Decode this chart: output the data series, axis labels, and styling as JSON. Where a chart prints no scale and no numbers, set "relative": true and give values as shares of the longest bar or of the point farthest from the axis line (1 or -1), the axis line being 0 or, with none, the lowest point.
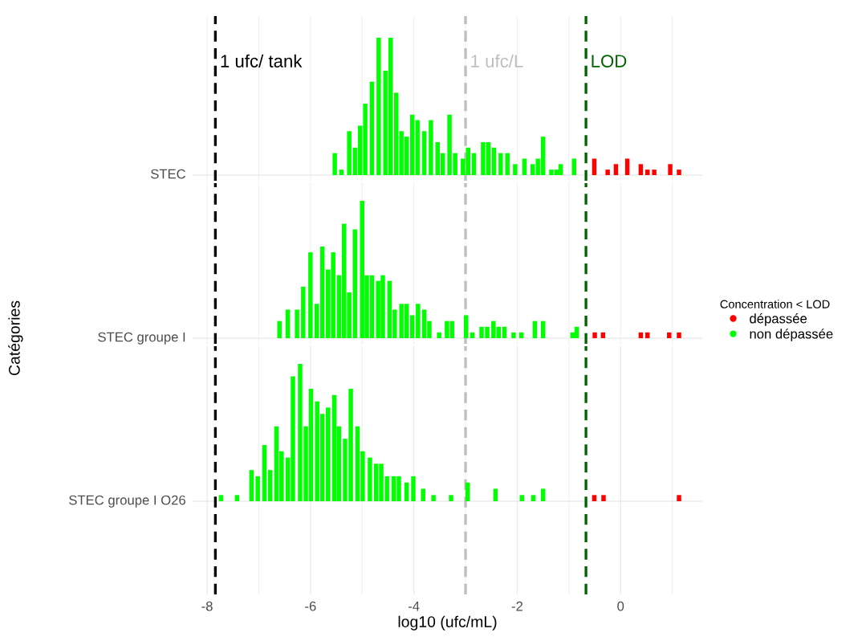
{
  "chart_data": [
    {
      "type": "bar",
      "relative": true,
      "title": "STEC",
      "grid": "x",
      "tick_labels": false,
      "xlim": [
        -8.28,
        1.58
      ],
      "xticks": [
        {
          "value": -8,
          "label": null
        },
        {
          "value": -7,
          "label": null
        },
        {
          "value": -6,
          "label": null
        },
        {
          "value": -5,
          "label": null
        },
        {
          "value": -4,
          "label": null
        },
        {
          "value": -3,
          "label": null
        },
        {
          "value": -2,
          "label": null
        },
        {
          "value": -1,
          "label": null
        },
        {
          "value": 0,
          "label": null
        },
        {
          "value": 1,
          "label": null
        }
      ],
      "ref_lines": [
        {
          "axis": "x",
          "value": -7.84,
          "label": "1 ufc/ tank",
          "color": "#000000",
          "line_style": "dashed"
        },
        {
          "axis": "x",
          "value": -3,
          "label": "1 ufc/L",
          "color": "#bebebe",
          "line_style": "dashed"
        },
        {
          "axis": "x",
          "value": -0.67,
          "label": "LOD",
          "color": "#006400",
          "line_style": "dashed"
        }
      ],
      "series": [
        {
          "color": "#ff0000",
          "x": [
            -0.51,
            -0.25,
            -0.09,
            0.13,
            0.39,
            0.52,
            0.65,
            0.96,
            1.13
          ],
          "values": [
            0.12,
            0.04,
            0.08,
            0.12,
            0.08,
            0.04,
            0.04,
            0.08,
            0.04
          ]
        },
        {
          "color": "#00ff00",
          "x": [
            -5.53,
            -5.4,
            -5.25,
            -5.14,
            -5.04,
            -4.94,
            -4.81,
            -4.68,
            -4.55,
            -4.45,
            -4.34,
            -4.24,
            -4.14,
            -4.03,
            -3.93,
            -3.8,
            -3.67,
            -3.54,
            -3.44,
            -3.31,
            -3.2,
            -3.05,
            -2.95,
            -2.84,
            -2.66,
            -2.56,
            -2.45,
            -2.32,
            -2.19,
            -2.04,
            -1.86,
            -1.7,
            -1.6,
            -1.5,
            -1.34,
            -1.24,
            -1.16,
            -0.9
          ],
          "values": [
            0.16,
            0.04,
            0.32,
            0.2,
            0.36,
            0.52,
            0.68,
            1,
            0.76,
            1,
            0.6,
            0.32,
            0.28,
            0.44,
            0.4,
            0.32,
            0.4,
            0.24,
            0.16,
            0.44,
            0.16,
            0.12,
            0.2,
            0.16,
            0.24,
            0.24,
            0.2,
            0.16,
            0.16,
            0.08,
            0.12,
            0.08,
            0.12,
            0.28,
            0.04,
            0.04,
            0.08,
            0.12
          ]
        }
      ]
    },
    {
      "type": "bar",
      "relative": true,
      "title": "STEC groupe I",
      "ylabel": "Catégories",
      "legend": "right",
      "legend_title": "Concentration < LOD",
      "grid": "x",
      "tick_labels": false,
      "xlim": [
        -8.28,
        1.58
      ],
      "xticks": [
        {
          "value": -8,
          "label": null
        },
        {
          "value": -7,
          "label": null
        },
        {
          "value": -6,
          "label": null
        },
        {
          "value": -5,
          "label": null
        },
        {
          "value": -4,
          "label": null
        },
        {
          "value": -3,
          "label": null
        },
        {
          "value": -2,
          "label": null
        },
        {
          "value": -1,
          "label": null
        },
        {
          "value": 0,
          "label": null
        },
        {
          "value": 1,
          "label": null
        }
      ],
      "ref_lines": [
        {
          "axis": "x",
          "value": -7.84,
          "color": "#000000",
          "line_style": "dashed"
        },
        {
          "axis": "x",
          "value": -3,
          "color": "#bebebe",
          "line_style": "dashed"
        },
        {
          "axis": "x",
          "value": -0.67,
          "color": "#006400",
          "line_style": "dashed"
        }
      ],
      "series": [
        {
          "name": "dépassée",
          "color": "#ff0000",
          "x": [
            -0.5,
            -0.34,
            0.39,
            0.52,
            0.94,
            1.13
          ],
          "values": [
            0.042,
            0.042,
            0.042,
            0.042,
            0.042,
            0.042
          ]
        },
        {
          "name": "non dépassée",
          "color": "#00ff00",
          "x": [
            -6.6,
            -6.44,
            -6.26,
            -6.14,
            -6,
            -5.88,
            -5.77,
            -5.66,
            -5.56,
            -5.45,
            -5.35,
            -5.25,
            -5.14,
            -5,
            -4.91,
            -4.81,
            -4.69,
            -4.6,
            -4.47,
            -4.37,
            -4.24,
            -4.14,
            -4.03,
            -3.92,
            -3.8,
            -3.7,
            -3.51,
            -3.36,
            -3.26,
            -2.99,
            -2.87,
            -2.69,
            -2.58,
            -2.46,
            -2.36,
            -2.25,
            -2.07,
            -1.92,
            -1.66,
            -1.5,
            -0.93,
            -0.85
          ],
          "values": [
            0.125,
            0.208,
            0.208,
            0.375,
            0.625,
            0.25,
            0.667,
            0.5,
            0.625,
            0.458,
            0.833,
            0.333,
            0.792,
            1,
            0.458,
            0.458,
            0.417,
            0.458,
            0.417,
            0.208,
            0.25,
            0.25,
            0.167,
            0.25,
            0.208,
            0.125,
            0.042,
            0.125,
            0.125,
            0.167,
            0.042,
            0.083,
            0.083,
            0.125,
            0.083,
            0.083,
            0.042,
            0.042,
            0.125,
            0.125,
            0.042,
            0.083
          ]
        }
      ]
    },
    {
      "type": "bar",
      "relative": true,
      "title": "STEC groupe I O26",
      "xlabel": "log10 (ufc/mL)",
      "grid": "x",
      "tick_labels": "x",
      "xlim": [
        -8.28,
        1.58
      ],
      "xticks": [
        {
          "value": -8,
          "label": "-8"
        },
        {
          "value": -7,
          "label": null
        },
        {
          "value": -6,
          "label": "-6"
        },
        {
          "value": -5,
          "label": null
        },
        {
          "value": -4,
          "label": "-4"
        },
        {
          "value": -3,
          "label": null
        },
        {
          "value": -2,
          "label": "-2"
        },
        {
          "value": -1,
          "label": null
        },
        {
          "value": 0,
          "label": "0"
        },
        {
          "value": 1,
          "label": null
        }
      ],
      "ref_lines": [
        {
          "axis": "x",
          "value": -7.84,
          "color": "#000000",
          "line_style": "dashed"
        },
        {
          "axis": "x",
          "value": -3,
          "color": "#bebebe",
          "line_style": "dashed"
        },
        {
          "axis": "x",
          "value": -0.67,
          "color": "#006400",
          "line_style": "dashed"
        }
      ],
      "series": [
        {
          "color": "#ff0000",
          "x": [
            -0.51,
            -0.33,
            1.13
          ],
          "values": [
            0.045,
            0.045,
            0.045
          ]
        },
        {
          "color": "#00ff00",
          "x": [
            -7.73,
            -7.42,
            -7.14,
            -7.02,
            -6.89,
            -6.78,
            -6.66,
            -6.56,
            -6.44,
            -6.34,
            -6.2,
            -6.09,
            -5.99,
            -5.87,
            -5.77,
            -5.66,
            -5.54,
            -5.45,
            -5.33,
            -5.22,
            -5.09,
            -4.99,
            -4.85,
            -4.73,
            -4.63,
            -4.52,
            -4.39,
            -4.29,
            -4.14,
            -4.01,
            -3.82,
            -3.62,
            -3.28,
            -2.96,
            -2.42,
            -1.91,
            -1.69,
            -1.5
          ],
          "values": [
            0.045,
            0.045,
            0.227,
            0.182,
            0.409,
            0.227,
            0.545,
            0.364,
            0.318,
            0.909,
            1,
            0.545,
            0.818,
            0.727,
            0.636,
            0.682,
            0.773,
            0.545,
            0.455,
            0.818,
            0.545,
            0.364,
            0.318,
            0.273,
            0.273,
            0.182,
            0.182,
            0.182,
            0.136,
            0.182,
            0.091,
            0.045,
            0.045,
            0.136,
            0.091,
            0.045,
            0.045,
            0.091
          ]
        }
      ]
    }
  ]
}
